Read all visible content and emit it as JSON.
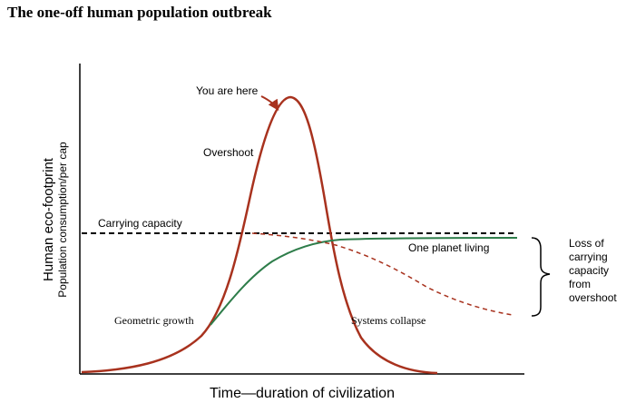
{
  "title": "The one-off human population outbreak",
  "axes": {
    "x_label": "Time—duration of civilization",
    "y_label_main": "Human eco-footprint",
    "y_label_sub": "Population consumption/per cap"
  },
  "annotations": {
    "you_are_here": "You are here",
    "overshoot": "Overshoot",
    "carrying_capacity": "Carrying capacity",
    "one_planet_living": "One planet living",
    "geometric_growth": "Geometric growth",
    "systems_collapse": "Systems collapse"
  },
  "bracket_note": [
    "Loss of",
    "carrying",
    "capacity",
    "from",
    "overshoot"
  ],
  "colors": {
    "overshoot_curve": "#a8321e",
    "sustainable_curve": "#2e7d4a",
    "collapse_curve": "#a8321e",
    "axis": "#000000"
  }
}
